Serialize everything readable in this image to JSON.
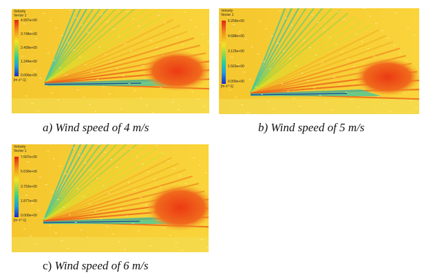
{
  "panels": [
    {
      "id": "a",
      "legend": {
        "title_line1": "Velocity",
        "title_line2": "Vector 1",
        "ticks": [
          "4.997e+00",
          "3.748e+00",
          "2.499e+00",
          "1.249e+00",
          "0.000e+00"
        ],
        "unit": "[m s^-1]"
      },
      "caption_prefix": "a)",
      "caption_text": "Wind speed of 4 m/s"
    },
    {
      "id": "b",
      "legend": {
        "title_line1": "Velocity",
        "title_line2": "Vector 1",
        "ticks": [
          "6.250e+00",
          "4.688e+00",
          "3.125e+00",
          "1.563e+00",
          "0.000e+00"
        ],
        "unit": "[m s^-1]"
      },
      "caption_prefix": "b)",
      "caption_text": "Wind speed of 5 m/s"
    },
    {
      "id": "c",
      "legend": {
        "title_line1": "Velocity",
        "title_line2": "Vector 1",
        "ticks": [
          "7.507e+00",
          "5.630e+00",
          "3.753e+00",
          "1.877e+00",
          "0.000e+00"
        ],
        "unit": "[m s^-1]"
      },
      "caption_prefix": "c)",
      "caption_text": "Wind speed of 6 m/s"
    }
  ],
  "colors": {
    "background_field": "#f7cf2a",
    "high_velocity": "#ee4a18",
    "mid_velocity": "#a6d83c",
    "low_velocity": "#2fc6a6"
  }
}
